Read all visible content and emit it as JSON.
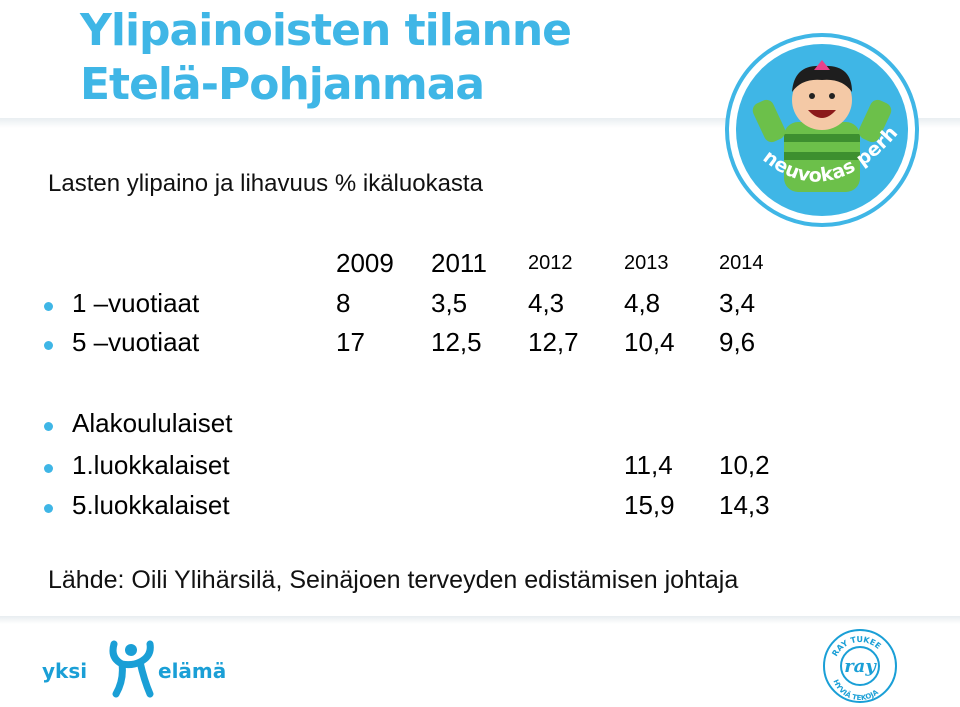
{
  "title": "Ylipainoisten tilanne Etelä-Pohjanmaa",
  "subtitle": "Lasten ylipaino ja lihavuus % ikäluokasta",
  "years": [
    "2009",
    "2011",
    "2012",
    "2013",
    "2014"
  ],
  "rows": [
    {
      "label": "1 –vuotiaat",
      "values": [
        "8",
        "3,5",
        "4,3",
        "4,8",
        "3,4"
      ]
    },
    {
      "label": "5 –vuotiaat",
      "values": [
        "17",
        "12,5",
        "12,7",
        "10,4",
        "9,6"
      ]
    }
  ],
  "school": {
    "heading": "Alakoululaiset",
    "rows": [
      {
        "label": "1.luokkalaiset",
        "v2013": "11,4",
        "v2014": "10,2"
      },
      {
        "label": "5.luokkalaiset",
        "v2013": "15,9",
        "v2014": "14,3"
      }
    ]
  },
  "source": "Lähde: Oili Ylihärsilä, Seinäjoen terveyden edistämisen johtaja",
  "logos": {
    "neuvokas": "neuvokas perhe",
    "yksi": "yksi",
    "elama": "elämä",
    "ray_top": "RAY TUKEE",
    "ray_center": "ray",
    "ray_bottom": "HYVIÄ TEKOJA"
  },
  "colors": {
    "accent": "#3fb6e6",
    "green": "#6cc04a",
    "pink": "#e8418a"
  }
}
